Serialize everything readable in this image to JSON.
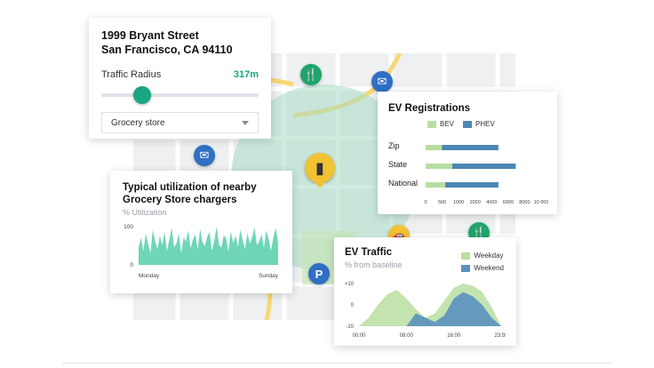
{
  "address": {
    "line1": "1999 Bryant Street",
    "line2": "San Francisco, CA 94110",
    "radius_label": "Traffic Radius",
    "radius_value": "317m",
    "slider_fraction": 0.26,
    "select_value": "Grocery store"
  },
  "utilization": {
    "title_line1": "Typical utilization of nearby",
    "title_line2": "Grocery Store chargers",
    "subtitle": "% Utilization",
    "y_ticks": [
      "100",
      "0"
    ],
    "x_ticks": [
      "Monday",
      "Sunday"
    ],
    "color": "#5fd1b0"
  },
  "registrations": {
    "title": "EV Registrations",
    "legend": [
      "BEV",
      "PHEV"
    ],
    "colors": {
      "BEV": "#b9dea1",
      "PHEV": "#4c86b3"
    }
  },
  "traffic": {
    "title": "EV Traffic",
    "subtitle": "% from baseline",
    "legend": [
      "Weekday",
      "Weekend"
    ],
    "colors": {
      "Weekday": "#b9dea1",
      "Weekend": "#5b91bf"
    }
  },
  "poi_icons": [
    "restaurant-icon",
    "mail-icon",
    "mail-icon",
    "charger-icon",
    "restaurant-icon",
    "parking-icon",
    "car-icon"
  ],
  "chart_data": [
    {
      "type": "area",
      "title": "Typical utilization of nearby Grocery Store chargers",
      "ylabel": "% Utilization",
      "ylim": [
        0,
        100
      ],
      "x_range": [
        "Monday",
        "Sunday"
      ],
      "values": [
        45,
        70,
        35,
        80,
        55,
        30,
        90,
        60,
        40,
        75,
        50,
        85,
        35,
        65,
        95,
        45,
        55,
        80,
        30,
        70,
        60,
        88,
        42,
        66,
        78,
        38,
        92,
        58,
        48,
        72,
        84,
        36,
        62,
        98,
        52,
        44,
        76,
        68,
        34,
        86,
        56,
        74,
        46,
        90,
        64,
        40,
        82,
        54,
        70,
        96,
        50,
        60,
        78,
        44,
        88,
        66,
        36,
        72,
        94,
        58
      ]
    },
    {
      "type": "bar",
      "title": "EV Registrations",
      "orientation": "horizontal",
      "stacked": true,
      "categories": [
        "Zip",
        "State",
        "National"
      ],
      "series": [
        {
          "name": "BEV",
          "values": [
            1400,
            2300,
            1700
          ]
        },
        {
          "name": "PHEV",
          "values": [
            6300,
            7800,
            6300
          ]
        }
      ],
      "x_ticks": [
        "0",
        "500",
        "1000",
        "2000",
        "4000",
        "6000",
        "8000",
        "10 000"
      ],
      "legend_position": "top"
    },
    {
      "type": "area",
      "title": "EV Traffic",
      "ylabel": "% from baseline",
      "ylim": [
        -10,
        10
      ],
      "y_ticks": [
        "+10",
        "0",
        "-10"
      ],
      "x_ticks": [
        "00:00",
        "08:00",
        "16:00",
        "23:59"
      ],
      "series": [
        {
          "name": "Weekday",
          "values": [
            -10,
            -6,
            0,
            5,
            7,
            3,
            -2,
            -6,
            -4,
            2,
            8,
            10,
            9,
            6,
            -1,
            -10
          ]
        },
        {
          "name": "Weekend",
          "values": [
            -10,
            -10,
            -10,
            -10,
            -10,
            -10,
            -4,
            -6,
            -8,
            -5,
            3,
            6,
            4,
            0,
            -6,
            -10
          ]
        }
      ],
      "legend_position": "top-right"
    }
  ]
}
